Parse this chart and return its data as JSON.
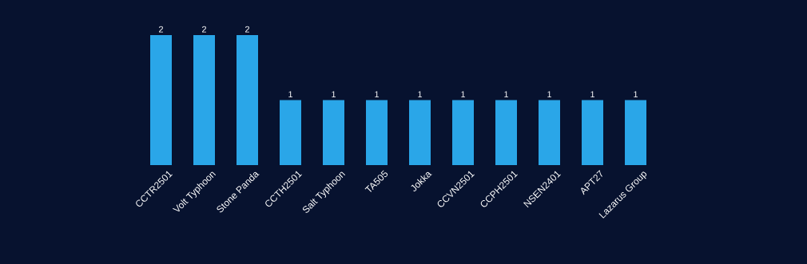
{
  "chart_data": {
    "type": "bar",
    "categories": [
      "CCTR2501",
      "Volt Typhoon",
      "Stone Panda",
      "CCTH2501",
      "Salt Typhoon",
      "TA505",
      "Jokka",
      "CCVN2501",
      "CCPH2501",
      "NSEN2401",
      "APT27",
      "Lazarus Group"
    ],
    "values": [
      2,
      2,
      2,
      1,
      1,
      1,
      1,
      1,
      1,
      1,
      1,
      1
    ],
    "color": "#2aa6e8",
    "data_labels": true
  }
}
